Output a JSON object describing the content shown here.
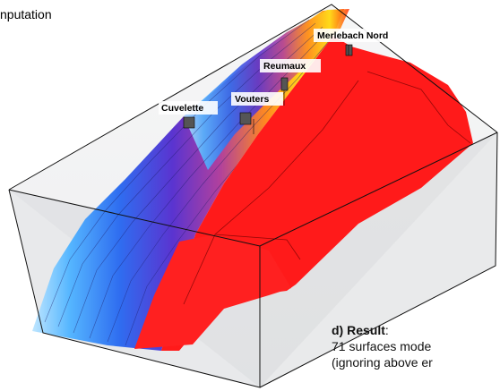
{
  "top_text": "nputation",
  "well_labels": [
    "Merlebach Nord",
    "Reumaux",
    "Vouters",
    "Cuvelette"
  ],
  "caption": {
    "heading": "d) Result",
    "heading_suffix": ":",
    "line1": "71 surfaces mode",
    "line2": "(ignoring above er"
  },
  "colors": {
    "fault_surface": "#ff1a1a",
    "box_fill": "#d9dadc",
    "box_edge": "#111111",
    "ramp": [
      "#9fd9ff",
      "#3aa0ff",
      "#2a52e0",
      "#6a2fc0",
      "#c43d9a",
      "#ff7a1a",
      "#ffe11a"
    ]
  }
}
